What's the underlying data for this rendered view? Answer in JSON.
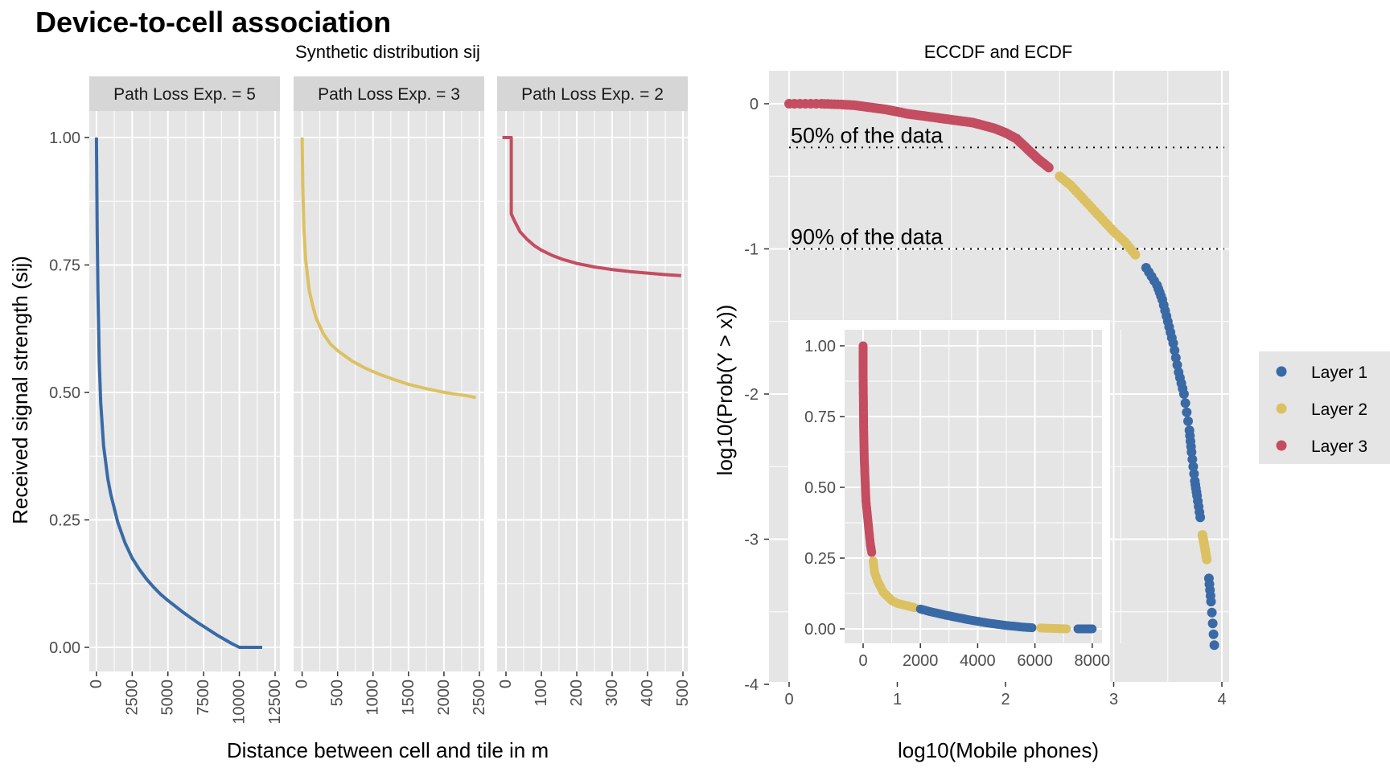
{
  "figure": {
    "title": "Device-to-cell association",
    "left_subtitle": "Synthetic distribution sij",
    "right_subtitle": "ECCDF and ECDF"
  },
  "colors": {
    "layer1": "#3A6AA6",
    "layer2": "#DCC163",
    "layer3": "#C44D61",
    "panel_bg": "#E5E5E5",
    "strip_bg": "#D6D6D6",
    "grid": "#FFFFFF",
    "tick_text": "#4D4D4D"
  },
  "chart_data": [
    {
      "type": "line",
      "title": "",
      "subtitle": "Synthetic distribution sij",
      "xlabel": "Distance between cell and tile in m",
      "ylabel": "Received signal strength (sij)",
      "ylim": [
        0,
        1
      ],
      "y_ticks": [
        "0.00",
        "0.25",
        "0.50",
        "0.75",
        "1.00"
      ],
      "grid": true,
      "facets": [
        {
          "strip": "Path Loss Exp. = 5",
          "color": "layer1",
          "xlim": [
            -500,
            12500
          ],
          "x_ticks": [
            "0",
            "2500",
            "5000",
            "7500",
            "10000",
            "12500"
          ],
          "x": [
            0,
            50,
            100,
            200,
            300,
            500,
            800,
            1000,
            1500,
            2000,
            2500,
            3000,
            3500,
            4000,
            4500,
            5000,
            5500,
            6000,
            6500,
            7000,
            7500,
            8000,
            8500,
            9000,
            9500,
            10000,
            10500,
            11000,
            11600
          ],
          "y": [
            1.0,
            0.82,
            0.7,
            0.56,
            0.48,
            0.395,
            0.33,
            0.3,
            0.245,
            0.205,
            0.175,
            0.153,
            0.134,
            0.118,
            0.104,
            0.092,
            0.081,
            0.07,
            0.06,
            0.05,
            0.041,
            0.032,
            0.023,
            0.015,
            0.007,
            0.0,
            0.0,
            0.0,
            0.0
          ]
        },
        {
          "strip": "Path Loss Exp. = 3",
          "color": "layer2",
          "xlim": [
            -120,
            2500
          ],
          "x_ticks": [
            "0",
            "500",
            "1000",
            "1500",
            "2000",
            "2500"
          ],
          "x": [
            0,
            10,
            25,
            50,
            100,
            150,
            200,
            300,
            400,
            500,
            700,
            900,
            1100,
            1300,
            1500,
            1700,
            1900,
            2100,
            2300,
            2450
          ],
          "y": [
            1.0,
            0.9,
            0.82,
            0.76,
            0.7,
            0.67,
            0.645,
            0.615,
            0.595,
            0.582,
            0.562,
            0.547,
            0.535,
            0.525,
            0.516,
            0.509,
            0.503,
            0.498,
            0.494,
            0.49
          ]
        },
        {
          "strip": "Path Loss Exp. = 2",
          "color": "layer3",
          "xlim": [
            -25,
            500
          ],
          "x_ticks": [
            "0",
            "100",
            "200",
            "300",
            "400",
            "500"
          ],
          "x": [
            -10,
            15,
            15,
            25,
            40,
            60,
            80,
            100,
            130,
            160,
            200,
            250,
            300,
            350,
            400,
            450,
            495
          ],
          "y": [
            1.0,
            1.0,
            0.85,
            0.835,
            0.815,
            0.8,
            0.788,
            0.779,
            0.769,
            0.761,
            0.753,
            0.746,
            0.741,
            0.737,
            0.734,
            0.731,
            0.729
          ]
        }
      ]
    },
    {
      "type": "scatter",
      "title": "",
      "subtitle": "ECCDF and ECDF",
      "xlabel": "log10(Mobile phones)",
      "ylabel": "log10(Prob(Y > x))",
      "xlim": [
        -0.2,
        4.05
      ],
      "ylim": [
        -4.1,
        0.2
      ],
      "x_ticks": [
        "0",
        "1",
        "2",
        "3",
        "4"
      ],
      "y_ticks": [
        "0",
        "-1",
        "-2",
        "-3",
        "-4"
      ],
      "grid": true,
      "legend_position": "right",
      "legend": [
        "Layer 1",
        "Layer 2",
        "Layer 3"
      ],
      "reference_lines": [
        {
          "y": -0.301,
          "label": "50% of the data"
        },
        {
          "y": -1.0,
          "label": "90% of the data"
        }
      ],
      "segments": [
        {
          "layer": "layer3",
          "x": [
            0,
            0.3,
            0.48,
            0.6,
            0.7,
            0.8,
            0.9,
            1.0,
            1.1,
            1.2,
            1.3,
            1.4,
            1.5,
            1.6,
            1.7,
            1.8,
            1.9,
            2.0,
            2.1,
            2.2,
            2.3,
            2.4
          ],
          "y": [
            0,
            0,
            -0.005,
            -0.01,
            -0.02,
            -0.03,
            -0.04,
            -0.055,
            -0.07,
            -0.08,
            -0.09,
            -0.1,
            -0.11,
            -0.12,
            -0.13,
            -0.15,
            -0.17,
            -0.2,
            -0.24,
            -0.31,
            -0.38,
            -0.44
          ]
        },
        {
          "layer": "layer2",
          "x": [
            2.5,
            2.6,
            2.7,
            2.8,
            2.9,
            3.0,
            3.1,
            3.2
          ],
          "y": [
            -0.5,
            -0.56,
            -0.64,
            -0.72,
            -0.8,
            -0.88,
            -0.95,
            -1.04
          ]
        },
        {
          "layer": "layer1",
          "x": [
            3.3,
            3.4,
            3.45,
            3.5,
            3.55,
            3.6,
            3.65,
            3.7,
            3.72,
            3.75,
            3.77,
            3.8
          ],
          "y": [
            -1.13,
            -1.25,
            -1.35,
            -1.5,
            -1.65,
            -1.85,
            -2.0,
            -2.25,
            -2.4,
            -2.6,
            -2.7,
            -2.85
          ]
        },
        {
          "layer": "layer2",
          "x": [
            3.82,
            3.84,
            3.86
          ],
          "y": [
            -2.97,
            -3.05,
            -3.14
          ]
        },
        {
          "layer": "layer1",
          "x": [
            3.88,
            3.9,
            3.93
          ],
          "y": [
            -3.27,
            -3.43,
            -3.73
          ]
        }
      ],
      "inset": {
        "type": "scatter",
        "xlim": [
          -500,
          8300
        ],
        "ylim": [
          -0.05,
          1.05
        ],
        "x_ticks": [
          "0",
          "2000",
          "4000",
          "6000",
          "8000"
        ],
        "y_ticks": [
          "0.00",
          "0.25",
          "0.50",
          "0.75",
          "1.00"
        ],
        "segments": [
          {
            "layer": "layer3",
            "x": [
              0,
              0,
              0,
              5,
              10,
              15,
              20,
              30,
              40,
              60,
              80,
              100,
              150,
              200,
              250,
              300
            ],
            "y": [
              1.0,
              0.95,
              0.9,
              0.85,
              0.8,
              0.75,
              0.7,
              0.65,
              0.6,
              0.55,
              0.5,
              0.45,
              0.4,
              0.35,
              0.3,
              0.27
            ]
          },
          {
            "layer": "layer2",
            "x": [
              350,
              400,
              500,
              600,
              700,
              800,
              900,
              1000,
              1200,
              1400,
              1600,
              1800
            ],
            "y": [
              0.24,
              0.2,
              0.17,
              0.15,
              0.13,
              0.12,
              0.11,
              0.1,
              0.09,
              0.085,
              0.08,
              0.075
            ]
          },
          {
            "layer": "layer1",
            "x": [
              2000,
              2300,
              2600,
              2900,
              3200,
              3500,
              3800,
              4100,
              4400,
              4700,
              5000,
              5300,
              5600,
              5900
            ],
            "y": [
              0.07,
              0.062,
              0.055,
              0.048,
              0.042,
              0.036,
              0.03,
              0.025,
              0.02,
              0.016,
              0.012,
              0.009,
              0.006,
              0.004
            ]
          },
          {
            "layer": "layer2",
            "x": [
              6200,
              6500,
              6800,
              7100
            ],
            "y": [
              0.003,
              0.002,
              0.001,
              0.0
            ]
          },
          {
            "layer": "layer1",
            "x": [
              7500,
              7800,
              8000
            ],
            "y": [
              0.0,
              0.0,
              0.0
            ]
          }
        ]
      }
    }
  ]
}
